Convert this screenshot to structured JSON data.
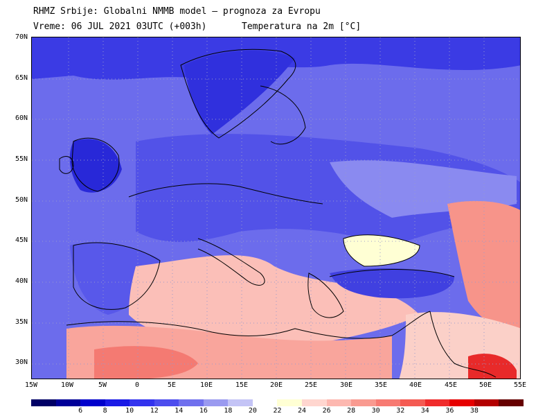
{
  "header": {
    "line1": "RHMZ Srbije: Globalni NMMB model — prognoza za Evropu",
    "line2": "Vreme: 06 JUL 2021 03UTC (+003h)",
    "variable": "Temperatura na 2m [°C]"
  },
  "axes": {
    "lat_labels": [
      "70N",
      "65N",
      "60N",
      "55N",
      "50N",
      "45N",
      "40N",
      "35N",
      "30N"
    ],
    "lon_labels": [
      "15W",
      "10W",
      "5W",
      "0",
      "5E",
      "10E",
      "15E",
      "20E",
      "25E",
      "30E",
      "35E",
      "40E",
      "45E",
      "50E",
      "55E"
    ]
  },
  "colorbar": {
    "colors": [
      "#000066",
      "#000099",
      "#0000cc",
      "#1a1ae6",
      "#3333ee",
      "#4d4dee",
      "#7070ee",
      "#9a9af0",
      "#c4c4f6",
      "#ffffff",
      "#ffffd4",
      "#ffd6cf",
      "#fdb8b0",
      "#f99a90",
      "#f77a72",
      "#f45a52",
      "#f02b2b",
      "#e60000",
      "#b30000",
      "#660000"
    ],
    "labels": [
      "6",
      "8",
      "10",
      "12",
      "14",
      "16",
      "18",
      "20",
      "22",
      "24",
      "26",
      "28",
      "30",
      "32",
      "34",
      "36",
      "38"
    ]
  },
  "map": {
    "region_colors": {
      "cold": "#4848e4",
      "cool": "#6a6aea",
      "mild": "#8e8ef0",
      "warm": "#ffffd4",
      "hot": "#fbbfb8",
      "hotter": "#f77a72",
      "ocean_far": "#6060e8"
    }
  }
}
